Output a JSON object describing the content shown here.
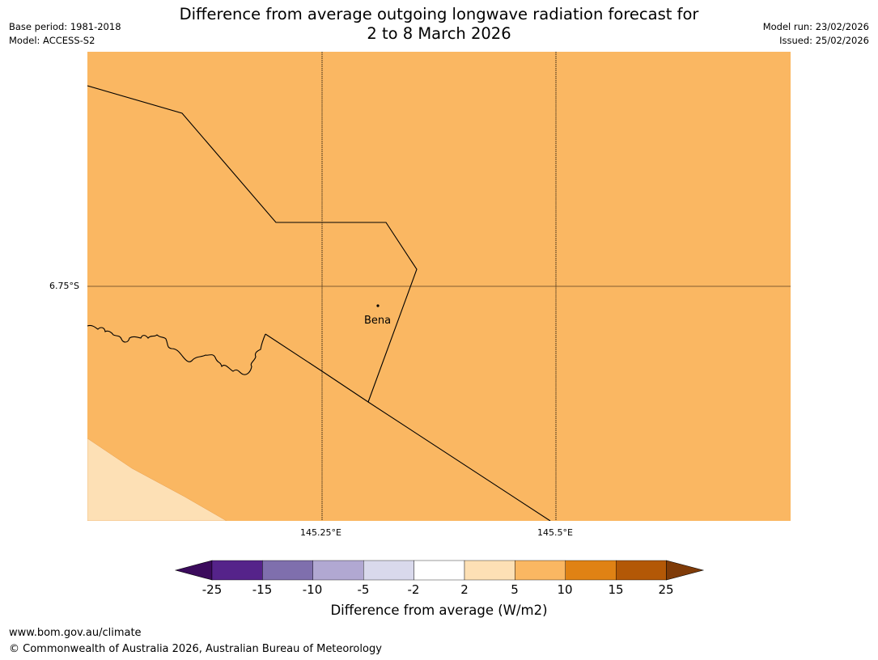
{
  "title": {
    "line1": "Difference from average outgoing longwave radiation forecast for",
    "line2": "2 to 8 March 2026"
  },
  "meta": {
    "base_period": "Base period: 1981-2018",
    "model": "Model: ACCESS-S2",
    "model_run": "Model run: 23/02/2026",
    "issued": "Issued: 25/02/2026"
  },
  "map": {
    "latitude_label": "6.75°S",
    "longitude_labels": [
      "145.25°E",
      "145.5°E"
    ],
    "place_label": "Bena",
    "fill_colors": {
      "main": "#fab762",
      "light": "#fde0b5"
    }
  },
  "colorbar": {
    "title": "Difference from average (W/m2)",
    "tick_labels": [
      "-25",
      "-15",
      "-10",
      "-5",
      "-2",
      "2",
      "5",
      "10",
      "15",
      "25"
    ],
    "colors": [
      "#3b0b5c",
      "#55238a",
      "#7f6fad",
      "#b1a8d2",
      "#d9d9ec",
      "#ffffff",
      "#fde0b5",
      "#fab762",
      "#e08214",
      "#b35806",
      "#7f3b08"
    ]
  },
  "footer": {
    "url": "www.bom.gov.au/climate",
    "copyright": "© Commonwealth of Australia 2026, Australian Bureau of Meteorology"
  }
}
